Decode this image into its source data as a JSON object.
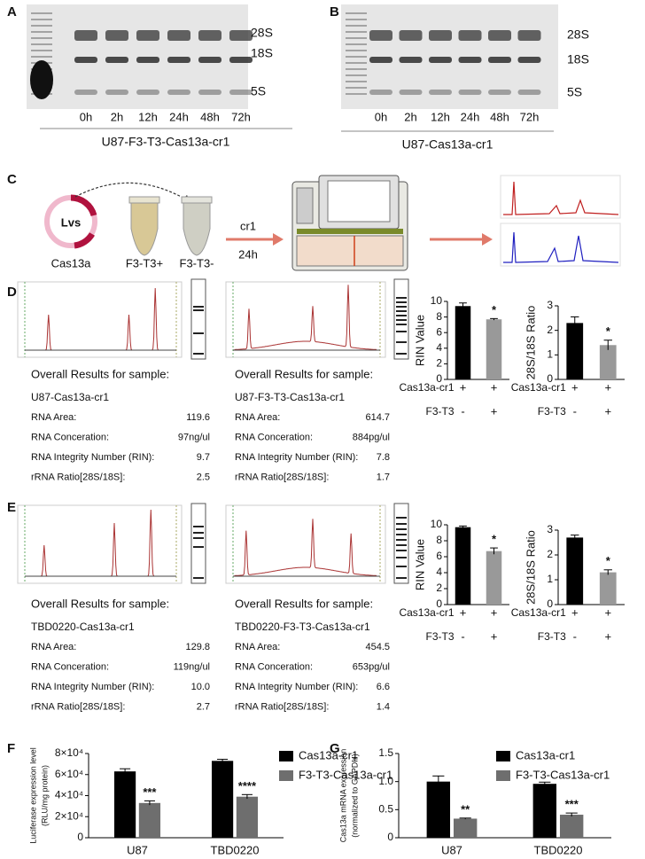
{
  "panels": {
    "A": {
      "label": "A",
      "bands": [
        "28S",
        "18S",
        "5S"
      ],
      "lanes": [
        "0h",
        "2h",
        "12h",
        "24h",
        "48h",
        "72h"
      ],
      "caption": "U87-F3-T3-Cas13a-cr1"
    },
    "B": {
      "label": "B",
      "bands": [
        "28S",
        "18S",
        "5S"
      ],
      "lanes": [
        "0h",
        "2h",
        "12h",
        "24h",
        "48h",
        "72h"
      ],
      "caption": "U87-Cas13a-cr1"
    },
    "C": {
      "label": "C",
      "vector": "Lvs",
      "vector_caption": "Cas13a",
      "tubes": [
        "F3-T3+",
        "F3-T3-"
      ],
      "step": "cr1",
      "time": "24h"
    },
    "D": {
      "label": "D",
      "samples": [
        {
          "heading": "Overall Results for sample:",
          "name": "U87-Cas13a-cr1",
          "rows": [
            {
              "label": "RNA Area:",
              "value": "119.6"
            },
            {
              "label": "RNA Conceration:",
              "value": "97ng/ul"
            },
            {
              "label": "RNA Integrity Number (RIN):",
              "value": "9.7"
            },
            {
              "label": "rRNA Ratio[28S/18S]:",
              "value": "2.5"
            }
          ]
        },
        {
          "heading": "Overall Results for sample:",
          "name": "U87-F3-T3-Cas13a-cr1",
          "rows": [
            {
              "label": "RNA Area:",
              "value": "614.7"
            },
            {
              "label": "RNA Conceration:",
              "value": "884pg/ul"
            },
            {
              "label": "RNA Integrity Number (RIN):",
              "value": "7.8"
            },
            {
              "label": "rRNA Ratio[28S/18S]:",
              "value": "1.7"
            }
          ]
        }
      ]
    },
    "E": {
      "label": "E",
      "samples": [
        {
          "heading": "Overall Results for sample:",
          "name": "TBD0220-Cas13a-cr1",
          "rows": [
            {
              "label": "RNA Area:",
              "value": "129.8"
            },
            {
              "label": "RNA Conceration:",
              "value": "119ng/ul"
            },
            {
              "label": "RNA Integrity Number (RIN):",
              "value": "10.0"
            },
            {
              "label": "rRNA Ratio[28S/18S]:",
              "value": "2.7"
            }
          ]
        },
        {
          "heading": "Overall Results for sample:",
          "name": "TBD0220-F3-T3-Cas13a-cr1",
          "rows": [
            {
              "label": "RNA Area:",
              "value": "454.5"
            },
            {
              "label": "RNA Conceration:",
              "value": "653pg/ul"
            },
            {
              "label": "RNA Integrity Number (RIN):",
              "value": "6.6"
            },
            {
              "label": "rRNA Ratio[28S/18S]:",
              "value": "1.4"
            }
          ]
        }
      ]
    },
    "F": {
      "label": "F"
    },
    "G": {
      "label": "G"
    }
  },
  "chart_data": [
    {
      "type": "bar",
      "ylabel": [
        "RIN Value"
      ],
      "ylim": [
        0,
        10
      ],
      "yticks": [
        0,
        2,
        4,
        6,
        8,
        10
      ],
      "series": [
        {
          "colors": [
            "#000000",
            "#999999"
          ],
          "values": [
            9.4,
            7.7
          ],
          "errors": [
            0.4,
            0.1
          ],
          "significance": [
            null,
            "*"
          ]
        }
      ],
      "condition_rows": [
        {
          "label": "Cas13a-cr1",
          "signs": [
            "+",
            "+"
          ]
        },
        {
          "label": "F3-T3",
          "signs": [
            "-",
            "+"
          ]
        }
      ]
    },
    {
      "type": "bar",
      "ylabel": [
        "28S/18S Ratio"
      ],
      "ylim": [
        0,
        3
      ],
      "yticks": [
        0,
        1,
        2,
        3
      ],
      "series": [
        {
          "colors": [
            "#000000",
            "#999999"
          ],
          "values": [
            2.3,
            1.4
          ],
          "errors": [
            0.25,
            0.2
          ],
          "significance": [
            null,
            "*"
          ]
        }
      ],
      "condition_rows": [
        {
          "label": "Cas13a-cr1",
          "signs": [
            "+",
            "+"
          ]
        },
        {
          "label": "F3-T3",
          "signs": [
            "-",
            "+"
          ]
        }
      ]
    },
    {
      "type": "bar",
      "ylabel": [
        "RIN Value"
      ],
      "ylim": [
        0,
        10
      ],
      "yticks": [
        0,
        2,
        4,
        6,
        8,
        10
      ],
      "series": [
        {
          "colors": [
            "#000000",
            "#999999"
          ],
          "values": [
            9.7,
            6.7
          ],
          "errors": [
            0.15,
            0.4
          ],
          "significance": [
            null,
            "*"
          ]
        }
      ],
      "condition_rows": [
        {
          "label": "Cas13a-cr1",
          "signs": [
            "+",
            "+"
          ]
        },
        {
          "label": "F3-T3",
          "signs": [
            "-",
            "+"
          ]
        }
      ]
    },
    {
      "type": "bar",
      "ylabel": [
        "28S/18S Ratio"
      ],
      "ylim": [
        0,
        3
      ],
      "yticks": [
        0,
        1,
        2,
        3
      ],
      "series": [
        {
          "colors": [
            "#000000",
            "#999999"
          ],
          "values": [
            2.7,
            1.3
          ],
          "errors": [
            0.1,
            0.1
          ],
          "significance": [
            null,
            "*"
          ]
        }
      ],
      "condition_rows": [
        {
          "label": "Cas13a-cr1",
          "signs": [
            "+",
            "+"
          ]
        },
        {
          "label": "F3-T3",
          "signs": [
            "-",
            "+"
          ]
        }
      ]
    },
    {
      "type": "bar",
      "ylabel": [
        "Luciferase expression level",
        "(RLU/mg protein)"
      ],
      "ylim": [
        0,
        80000
      ],
      "yticks": [
        0,
        {
          "value": 20000,
          "label": "2×10⁴"
        },
        {
          "value": 40000,
          "label": "4×10⁴"
        },
        {
          "value": 60000,
          "label": "6×10⁴"
        },
        {
          "value": 80000,
          "label": "8×10⁴"
        }
      ],
      "categories": [
        "U87",
        "TBD0220"
      ],
      "series": [
        {
          "name": "Cas13a-cr1",
          "color": "#000000",
          "values": [
            63000,
            73000
          ],
          "errors": [
            2500,
            1500
          ],
          "significance": [
            null,
            null
          ]
        },
        {
          "name": "F3-T3-Cas13a-cr1",
          "color": "#6e6e6e",
          "values": [
            33000,
            39000
          ],
          "errors": [
            2000,
            2000
          ],
          "significance": [
            "***",
            "****"
          ]
        }
      ]
    },
    {
      "type": "bar",
      "ylabel": [
        "Cas13a mRNA expression",
        "(normalized to GAPDH)"
      ],
      "ylim": [
        0,
        1.5
      ],
      "yticks": [
        0,
        0.5,
        {
          "value": 1,
          "label": "1.0"
        },
        1.5
      ],
      "categories": [
        "U87",
        "TBD0220"
      ],
      "series": [
        {
          "name": "Cas13a-cr1",
          "color": "#000000",
          "values": [
            1.0,
            0.96
          ],
          "errors": [
            0.1,
            0.03
          ],
          "significance": [
            null,
            null
          ]
        },
        {
          "name": "F3-T3-Cas13a-cr1",
          "color": "#6e6e6e",
          "values": [
            0.34,
            0.41
          ],
          "errors": [
            0.01,
            0.03
          ],
          "significance": [
            "**",
            "***"
          ]
        }
      ]
    }
  ]
}
